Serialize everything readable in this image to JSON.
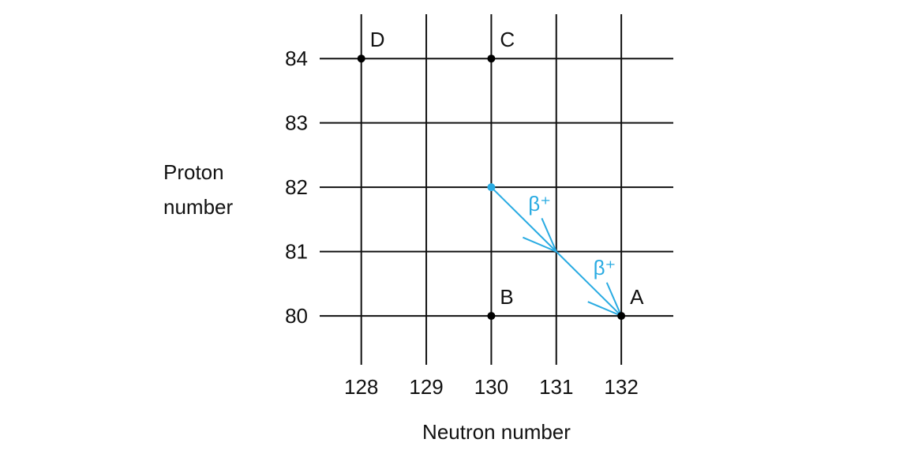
{
  "chart_data": {
    "type": "scatter",
    "xlabel": "Neutron number",
    "ylabel": "Proton number",
    "xlim": [
      127.36,
      132.8
    ],
    "ylim": [
      79.24,
      84.69
    ],
    "xticks": [
      128,
      129,
      130,
      131,
      132
    ],
    "yticks": [
      80,
      81,
      82,
      83,
      84
    ],
    "grid": true,
    "points": {
      "labels": [
        "A",
        "B",
        "C",
        "D"
      ],
      "x": [
        132,
        130,
        130,
        128
      ],
      "y": [
        80,
        80,
        84,
        84
      ],
      "color": "#000000"
    },
    "decay": {
      "x": [
        130,
        131,
        132
      ],
      "y": [
        82,
        81,
        80
      ],
      "labels": [
        "β⁺",
        "β⁺"
      ],
      "color": "#29abe2"
    }
  }
}
